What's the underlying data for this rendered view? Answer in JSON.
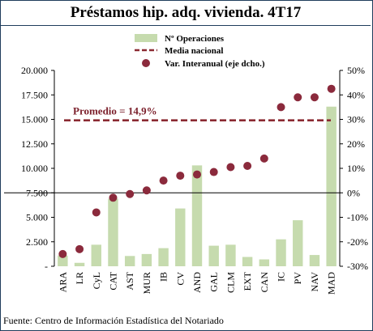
{
  "title": "Préstamos hip. adq. vivienda. 4T17",
  "source": "Fuente: Centro de Información Estadística del Notariado",
  "chart_data": {
    "type": "bar",
    "categories": [
      "ARA",
      "LR",
      "CyL",
      "CAT",
      "AST",
      "MUR",
      "IB",
      "CV",
      "AND",
      "GAL",
      "CLM",
      "EXT",
      "CAN",
      "IC",
      "PV",
      "NAV",
      "MAD"
    ],
    "series": [
      {
        "name": "Nº Operaciones",
        "type": "bar",
        "axis": "left",
        "color": "#c6dbae",
        "values": [
          1100,
          350,
          2200,
          6900,
          1050,
          1250,
          1850,
          5900,
          10300,
          2100,
          2200,
          950,
          700,
          2750,
          4700,
          1150,
          16300
        ]
      },
      {
        "name": "Media nacional",
        "type": "line",
        "axis": "left",
        "color": "#8b2a32",
        "style": "dashed",
        "value": 14900
      },
      {
        "name": "Var. Interanual (eje dcho.)",
        "type": "scatter",
        "axis": "right",
        "color": "#8b2a3c",
        "values": [
          -25,
          -23,
          -8,
          -2,
          -0.5,
          1,
          5,
          7,
          7.5,
          8.5,
          10.5,
          11,
          14,
          35,
          39,
          39,
          42.5
        ]
      }
    ],
    "y_left": {
      "min": 0,
      "max": 20000,
      "ticks": [
        "-",
        "2.500",
        "5.000",
        "7.500",
        "10.000",
        "12.500",
        "15.000",
        "17.500",
        "20.000"
      ],
      "tick_values": [
        0,
        2500,
        5000,
        7500,
        10000,
        12500,
        15000,
        17500,
        20000
      ]
    },
    "y_right": {
      "min": -30,
      "max": 50,
      "ticks": [
        "-30%",
        "-20%",
        "-10%",
        "0%",
        "10%",
        "20%",
        "30%",
        "40%",
        "50%"
      ],
      "tick_values": [
        -30,
        -20,
        -10,
        0,
        10,
        20,
        30,
        40,
        50
      ]
    },
    "annotation": "Promedio = 14,9%",
    "legend_position": "top-right"
  }
}
